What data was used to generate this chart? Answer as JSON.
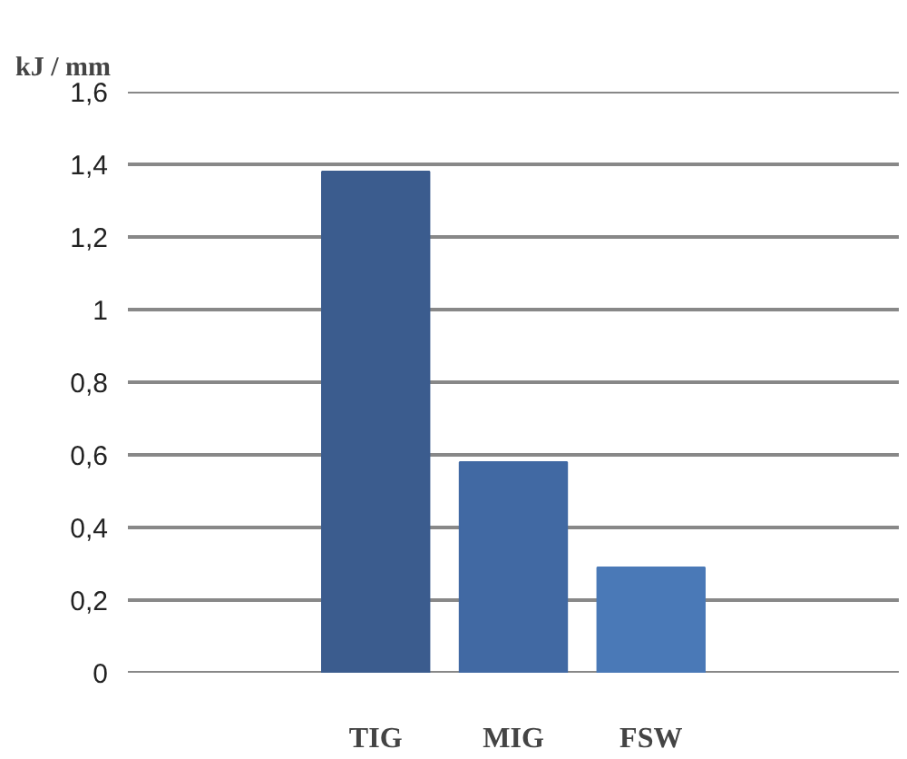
{
  "chart_data": {
    "type": "bar",
    "ylabel": "kJ / mm",
    "categories": [
      "TIG",
      "MIG",
      "FSW"
    ],
    "values": [
      1.38,
      0.58,
      0.29
    ],
    "colors": [
      "#3b5c8e",
      "#4169a3",
      "#4a79b7"
    ],
    "ylim": [
      0,
      1.6
    ],
    "yticks": [
      0,
      {
        "value": 0.2,
        "label": "0,2"
      },
      {
        "value": 0.4,
        "label": "0,4"
      },
      {
        "value": 0.6,
        "label": "0,6"
      },
      {
        "value": 0.8,
        "label": "0,8"
      },
      1,
      {
        "value": 1.2,
        "label": "1,2"
      },
      {
        "value": 1.4,
        "label": "1,4"
      },
      {
        "value": 1.6,
        "label": "1,6"
      }
    ],
    "grid": "y"
  }
}
